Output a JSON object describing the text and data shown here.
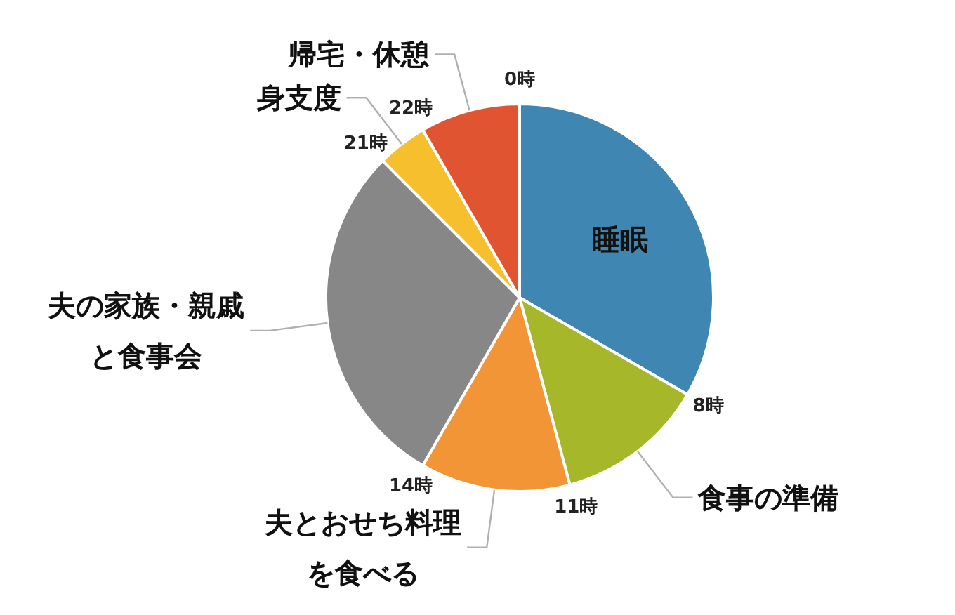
{
  "chart_data": {
    "type": "pie",
    "categories": [
      "睡眠",
      "食事の準備",
      "夫とおせち料理を食べる",
      "夫の家族・親戚と食事会",
      "身支度",
      "帰宅・休憩"
    ],
    "values": [
      33.33,
      12.5,
      12.5,
      29.17,
      4.17,
      8.33
    ],
    "colors": [
      "#3f86b2",
      "#a6b72a",
      "#f19537",
      "#878787",
      "#f5bf2e",
      "#e05431"
    ],
    "annotations": [
      "0時",
      "8時",
      "11時",
      "14時",
      "21時",
      "22時"
    ]
  }
}
